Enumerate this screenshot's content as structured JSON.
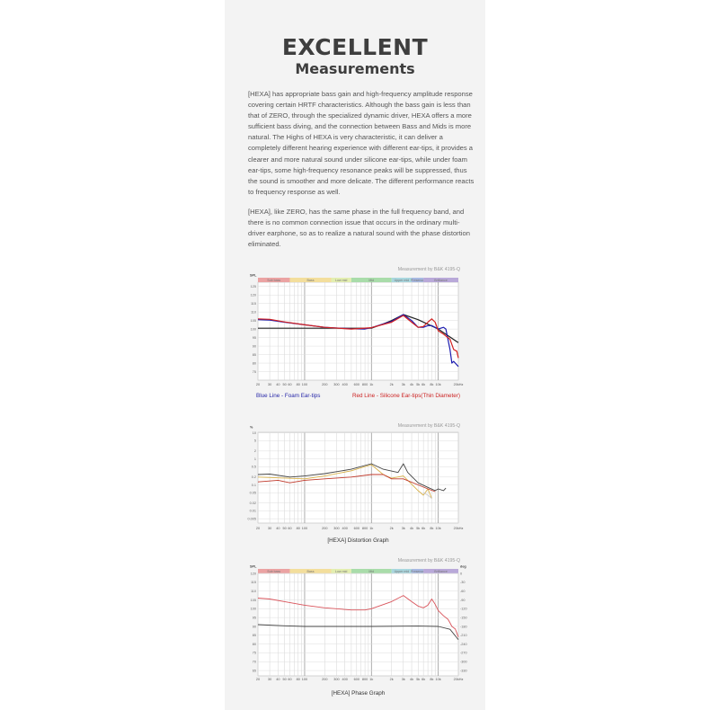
{
  "header": {
    "title": "EXCELLENT",
    "subtitle": "Measurements"
  },
  "paragraphs": [
    "[HEXA] has appropriate bass gain and high-frequency amplitude response covering certain HRTF characteristics. Although the bass gain is less than that of ZERO, through the specialized dynamic driver, HEXA offers a more sufficient bass diving, and the connection between Bass and Mids is more natural. The Highs of HEXA is very characteristic, it can deliver a completely different hearing experience with different ear-tips, it provides a clearer and more natural sound under silicone ear-tips, while under foam ear-tips, some high-frequency resonance peaks will be suppressed, thus the sound is smoother and more delicate. The different performance reacts to frequency response as well.",
    "[HEXA], like ZERO, has the same phase in the full frequency band, and there is no common connection issue that occurs in the ordinary multi-driver earphone, so as to realize a natural sound with the phase distortion eliminated."
  ],
  "bands": [
    {
      "label": "Sub bass",
      "from": 20,
      "to": 60,
      "color": "#eba3a3"
    },
    {
      "label": "Bass",
      "from": 60,
      "to": 250,
      "color": "#f3de9c"
    },
    {
      "label": "Low mid",
      "from": 250,
      "to": 500,
      "color": "#e3eeb0"
    },
    {
      "label": "Mid",
      "from": 500,
      "to": 2000,
      "color": "#a9dcaa"
    },
    {
      "label": "Upper mid",
      "from": 2000,
      "to": 4000,
      "color": "#a9d7df"
    },
    {
      "label": "Presence",
      "from": 4000,
      "to": 6000,
      "color": "#a8b9e2"
    },
    {
      "label": "Brilliance",
      "from": 6000,
      "to": 20000,
      "color": "#b9a9d9"
    }
  ],
  "x_ticks": [
    {
      "f": 20,
      "label": "20"
    },
    {
      "f": 30,
      "label": "30"
    },
    {
      "f": 40,
      "label": "40"
    },
    {
      "f": 50,
      "label": "50"
    },
    {
      "f": 60,
      "label": "60"
    },
    {
      "f": 80,
      "label": "80"
    },
    {
      "f": 100,
      "label": "100"
    },
    {
      "f": 200,
      "label": "200"
    },
    {
      "f": 300,
      "label": "300"
    },
    {
      "f": 400,
      "label": "400"
    },
    {
      "f": 600,
      "label": "600"
    },
    {
      "f": 800,
      "label": "800"
    },
    {
      "f": 1000,
      "label": "1k"
    },
    {
      "f": 2000,
      "label": "2k"
    },
    {
      "f": 3000,
      "label": "3k"
    },
    {
      "f": 4000,
      "label": "4k"
    },
    {
      "f": 5000,
      "label": "5k"
    },
    {
      "f": 6000,
      "label": "6k"
    },
    {
      "f": 8000,
      "label": "8k"
    },
    {
      "f": 10000,
      "label": "10k"
    },
    {
      "f": 20000,
      "label": "20kHz"
    }
  ],
  "chart_data": [
    {
      "type": "line",
      "credit": "Measurement by B&K 4195-Q",
      "ylabel": "SPL",
      "xscale": "log",
      "xlim": [
        20,
        20000
      ],
      "ylim": [
        70,
        127.5
      ],
      "yticks": [
        125,
        120,
        115,
        110,
        105,
        100,
        95,
        90,
        85,
        80,
        75
      ],
      "grid": true,
      "legend": [
        "Blue Line - Foam Ear-tips",
        "Red Line - Silicone Ear-tips(Thin Diameter)"
      ],
      "series": [
        {
          "color": "#222222",
          "x": [
            20,
            1000,
            1500,
            2000,
            3000,
            5000,
            10000,
            20000
          ],
          "y": [
            100.5,
            100.5,
            103,
            105,
            108.5,
            105.5,
            100,
            92
          ]
        },
        {
          "name": "Blue Line - Foam Ear-tips",
          "color": "#1c1cb0",
          "x": [
            20,
            30,
            50,
            100,
            200,
            500,
            800,
            1000,
            1500,
            2000,
            3000,
            4000,
            5000,
            6000,
            7000,
            8000,
            10000,
            12000,
            13000,
            15000,
            16000,
            17000,
            20000
          ],
          "y": [
            105.5,
            105.3,
            104,
            102.5,
            101,
            100.2,
            100,
            100.8,
            103,
            104.5,
            108.5,
            105,
            101,
            101,
            102,
            102,
            100,
            101,
            100,
            88,
            80,
            81,
            78
          ]
        },
        {
          "name": "Red Line - Silicone Ear-tips(Thin Diameter)",
          "color": "#d22020",
          "x": [
            20,
            30,
            50,
            100,
            200,
            500,
            1000,
            2000,
            3000,
            4000,
            5000,
            6000,
            7000,
            8000,
            9000,
            10000,
            12000,
            15000,
            17000,
            19000,
            20000
          ],
          "y": [
            106,
            105.7,
            104.2,
            102.5,
            101,
            100,
            100.8,
            104,
            108,
            104,
            101,
            101.5,
            104,
            106,
            104,
            99,
            97,
            94,
            88,
            87,
            83
          ]
        }
      ]
    },
    {
      "type": "line",
      "credit": "Measurement by B&K 4195-Q",
      "title": "[HEXA] Distortion Graph",
      "ylabel": "%",
      "xscale": "log",
      "xlim": [
        20,
        20000
      ],
      "yscale": "log",
      "ylim": [
        0.0034,
        10.5
      ],
      "yticks": [
        10,
        5,
        2,
        1,
        0.5,
        0.2,
        0.1,
        0.05,
        0.02,
        0.01,
        0.005
      ],
      "grid": true,
      "series": [
        {
          "color": "#444444",
          "x": [
            20,
            30,
            60,
            100,
            200,
            500,
            1000,
            1500,
            2500,
            3000,
            3500,
            5000,
            7000,
            9000,
            10000,
            12000,
            13000
          ],
          "y": [
            0.25,
            0.26,
            0.2,
            0.22,
            0.27,
            0.4,
            0.65,
            0.4,
            0.3,
            0.65,
            0.3,
            0.12,
            0.08,
            0.06,
            0.07,
            0.06,
            0.075
          ]
        },
        {
          "color": "#d9b24a",
          "x": [
            20,
            100,
            200,
            500,
            1000,
            1500,
            2000,
            3000,
            5000,
            6000,
            7000,
            8000
          ],
          "y": [
            0.2,
            0.17,
            0.22,
            0.35,
            0.6,
            0.25,
            0.18,
            0.22,
            0.06,
            0.04,
            0.07,
            0.03
          ]
        },
        {
          "color": "#c0392b",
          "x": [
            20,
            40,
            60,
            100,
            200,
            500,
            1000,
            1500,
            2000,
            3000,
            5000,
            7000,
            9000
          ],
          "y": [
            0.13,
            0.15,
            0.12,
            0.15,
            0.17,
            0.2,
            0.25,
            0.25,
            0.17,
            0.17,
            0.1,
            0.07,
            0.055
          ]
        },
        {
          "color": "#cccccc",
          "x": [
            6000,
            7000,
            8000
          ],
          "y": [
            0.05,
            0.04,
            0.03
          ]
        }
      ]
    },
    {
      "type": "line",
      "credit": "Measurement by B&K 4195-Q",
      "title": "[HEXA] Phase Graph",
      "ylabel": "SPL",
      "y2label": "deg",
      "xscale": "log",
      "xlim": [
        20,
        20000
      ],
      "ylim": [
        62,
        120
      ],
      "yticks": [
        120,
        115,
        110,
        105,
        100,
        95,
        90,
        85,
        80,
        75,
        70,
        65
      ],
      "y2ticks": [
        0,
        -30,
        -60,
        -90,
        -120,
        -150,
        -180,
        -210,
        -240,
        -270,
        -300,
        -330
      ],
      "grid": true,
      "series": [
        {
          "color": "#d9535a",
          "axis": "left",
          "x": [
            20,
            30,
            50,
            100,
            200,
            500,
            800,
            1000,
            2000,
            3000,
            4000,
            5000,
            6000,
            7000,
            8000,
            9000,
            10000,
            12000,
            14000,
            15000,
            16000,
            18000,
            20000
          ],
          "y": [
            106,
            105.5,
            104,
            102,
            100.5,
            99.3,
            99.3,
            100,
            104,
            107.5,
            104,
            101.5,
            100.5,
            102,
            105.5,
            102.5,
            99,
            96,
            94,
            92,
            90,
            88.5,
            84
          ]
        },
        {
          "color": "#444444",
          "axis": "right",
          "x": [
            20,
            50,
            100,
            1000,
            5000,
            10000,
            15000,
            20000
          ],
          "y": [
            -174,
            -178,
            -180,
            -180,
            -179,
            -180,
            -190,
            -225
          ]
        }
      ]
    }
  ]
}
